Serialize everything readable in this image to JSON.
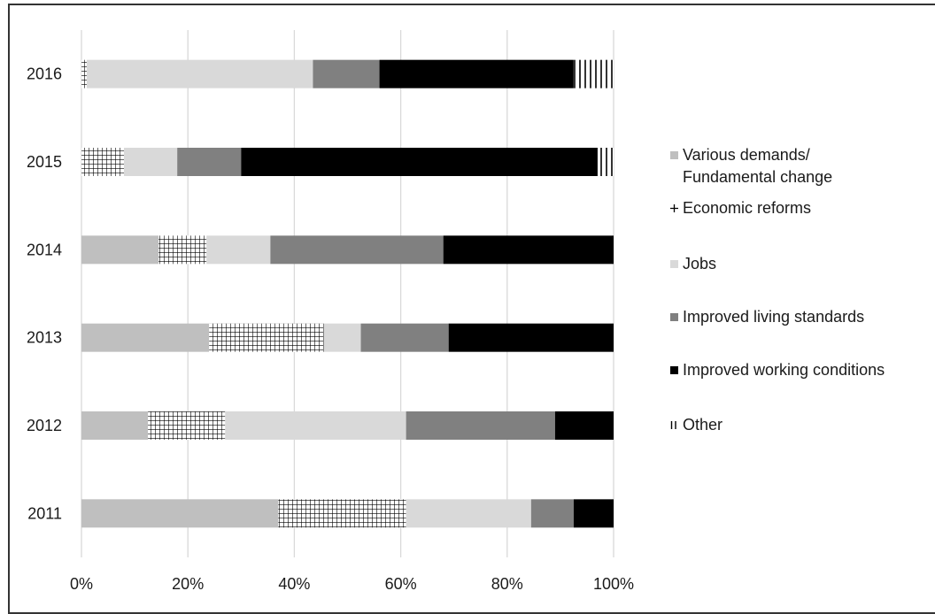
{
  "chart_data": {
    "type": "bar",
    "orientation": "horizontal",
    "stacked": "percent",
    "categories": [
      "2016",
      "2015",
      "2014",
      "2013",
      "2012",
      "2011"
    ],
    "x_ticks": [
      "0%",
      "20%",
      "40%",
      "60%",
      "80%",
      "100%"
    ],
    "xlim": [
      0,
      100
    ],
    "grid": "vertical",
    "legend_position": "right",
    "series": [
      {
        "name": "Various demands/ Fundamental change",
        "legend_lines": [
          "Various demands/",
          "Fundamental change"
        ],
        "color": "#bfbfbf",
        "pattern": "solid",
        "legend_marker": "square",
        "values": [
          0,
          0,
          14.5,
          24,
          12.5,
          37
        ]
      },
      {
        "name": "Economic reforms",
        "legend_lines": [
          "Economic reforms"
        ],
        "color": "#ffffff",
        "pattern": "grid",
        "legend_marker": "plus",
        "values": [
          1,
          8,
          9,
          21.5,
          14.5,
          24
        ]
      },
      {
        "name": "Jobs",
        "legend_lines": [
          "Jobs"
        ],
        "color": "#d9d9d9",
        "pattern": "solid",
        "legend_marker": "square",
        "values": [
          42.5,
          10,
          12,
          7,
          34,
          23.5
        ]
      },
      {
        "name": "Improved living standards",
        "legend_lines": [
          "Improved living standards"
        ],
        "color": "#808080",
        "pattern": "solid",
        "legend_marker": "square",
        "values": [
          12.5,
          12,
          32.5,
          16.5,
          28,
          8
        ]
      },
      {
        "name": "Improved working conditions",
        "legend_lines": [
          "Improved working conditions"
        ],
        "color": "#000000",
        "pattern": "solid",
        "legend_marker": "square",
        "values": [
          36.5,
          67,
          32,
          31,
          11,
          7.5
        ]
      },
      {
        "name": "Other",
        "legend_lines": [
          "Other"
        ],
        "color": "#ffffff",
        "pattern": "vertical-lines",
        "legend_marker": "bars",
        "values": [
          7.5,
          3,
          0,
          0,
          0,
          0
        ]
      }
    ]
  }
}
